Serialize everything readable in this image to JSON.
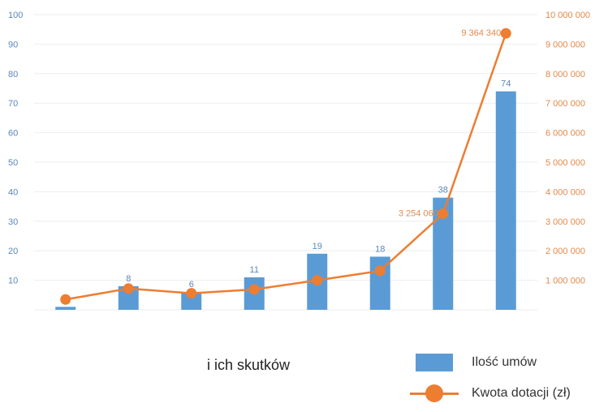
{
  "chart_data": {
    "type": "bar",
    "categories": [
      "",
      "",
      "",
      "",
      "",
      "",
      "",
      ""
    ],
    "series": [
      {
        "name": "Ilość umów",
        "type": "bar",
        "axis": "left",
        "color": "#5b9bd5",
        "values": [
          1,
          8,
          6,
          11,
          19,
          18,
          38,
          74
        ]
      },
      {
        "name": "Kwota dotacji (zł)",
        "type": "line",
        "axis": "right",
        "color": "#ed7d31",
        "values": [
          350000,
          720000,
          560000,
          690000,
          1000000,
          1320000,
          3254060,
          9364340
        ]
      }
    ],
    "left_ticks": [
      "10",
      "20",
      "30",
      "40",
      "50",
      "60",
      "70",
      "80",
      "90",
      "100"
    ],
    "right_ticks": [
      "1 000 000",
      "2 000 000",
      "3 000 000",
      "4 000 000",
      "5 000 000",
      "6 000 000",
      "7 000 000",
      "8 000 000",
      "9 000 000",
      "10 000 000"
    ],
    "bar_labels": [
      "1",
      "8",
      "6",
      "11",
      "19",
      "18",
      "38",
      "74"
    ],
    "line_labels": [
      "",
      "",
      "",
      "",
      "",
      "",
      "3 254 060",
      "9 364 340"
    ],
    "ylim_left": [
      0,
      100
    ],
    "ylim_right": [
      0,
      10000000
    ],
    "grid": true,
    "legend_position": "bottom-right",
    "title": "",
    "xlabel": "",
    "ylabel": ""
  },
  "legend": {
    "bars": "Ilość umów",
    "line": "Kwota dotacji (zł)"
  },
  "fragment_text": "i ich skutków"
}
